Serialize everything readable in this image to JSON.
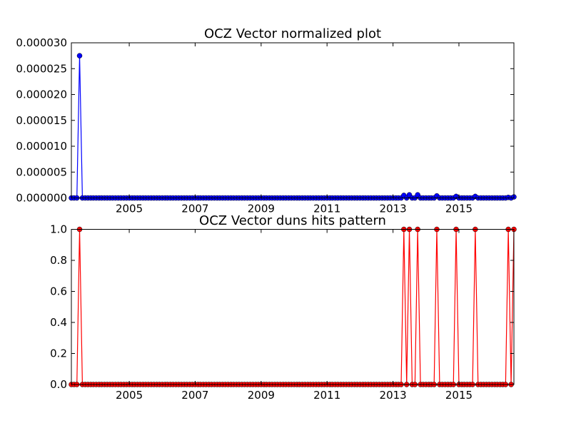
{
  "chart_data": [
    {
      "type": "line",
      "title": "OCZ Vector normalized plot",
      "xlabel": "",
      "ylabel": "",
      "xlim": [
        "2003-04-01",
        "2016-09-01"
      ],
      "ylim": [
        0,
        3e-05
      ],
      "x_ticks": [
        "2005",
        "2007",
        "2009",
        "2011",
        "2013",
        "2015"
      ],
      "y_ticks": [
        "0.000000",
        "0.000005",
        "0.000010",
        "0.000015",
        "0.000020",
        "0.000025",
        "0.000030"
      ],
      "grid": false,
      "color": "#0000ff",
      "marker": "circle",
      "x_start": "2003-04",
      "x_end": "2016-09",
      "x_step": "month",
      "nonzero_points": [
        {
          "x": "2003-07",
          "y": 2.75e-05
        },
        {
          "x": "2013-05",
          "y": 5e-07
        },
        {
          "x": "2013-07",
          "y": 6e-07
        },
        {
          "x": "2013-10",
          "y": 6e-07
        },
        {
          "x": "2014-05",
          "y": 4e-07
        },
        {
          "x": "2014-12",
          "y": 3e-07
        },
        {
          "x": "2015-07",
          "y": 3e-07
        },
        {
          "x": "2016-07",
          "y": 1e-07
        },
        {
          "x": "2016-09",
          "y": 2e-07
        }
      ]
    },
    {
      "type": "line",
      "title": "OCZ Vector duns hits pattern",
      "xlabel": "",
      "ylabel": "",
      "xlim": [
        "2003-04-01",
        "2016-09-01"
      ],
      "ylim": [
        0,
        1.0
      ],
      "x_ticks": [
        "2005",
        "2007",
        "2009",
        "2011",
        "2013",
        "2015"
      ],
      "y_ticks": [
        "0.0",
        "0.2",
        "0.4",
        "0.6",
        "0.8",
        "1.0"
      ],
      "grid": false,
      "color": "#ff0000",
      "marker": "circle",
      "x_start": "2003-04",
      "x_end": "2016-09",
      "x_step": "month",
      "nonzero_points": [
        {
          "x": "2003-07",
          "y": 1
        },
        {
          "x": "2013-05",
          "y": 1
        },
        {
          "x": "2013-07",
          "y": 1
        },
        {
          "x": "2013-10",
          "y": 1
        },
        {
          "x": "2014-05",
          "y": 1
        },
        {
          "x": "2014-12",
          "y": 1
        },
        {
          "x": "2015-07",
          "y": 1
        },
        {
          "x": "2016-07",
          "y": 1
        },
        {
          "x": "2016-09",
          "y": 1
        }
      ]
    }
  ]
}
